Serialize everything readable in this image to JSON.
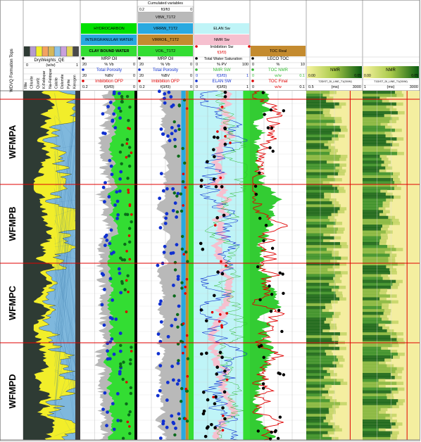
{
  "chart_data": {
    "type": "well-log-panel",
    "depth_zones": [
      "WFMPA",
      "WFMPB",
      "WFMPC",
      "WFMPD"
    ],
    "formation_tops_label": "WDVQ Formation Tops",
    "tracks": [
      {
        "id": "lithology",
        "header_title": "DryWeights_QE",
        "units": "(w/w)",
        "scale": [
          0,
          1
        ],
        "rotated_labels": [
          "Illite",
          "Chlorite",
          "Quartz",
          "K-Feldspar",
          "Na-Feldspar",
          "Calcite",
          "Dolomite",
          "Pyrite",
          "Kerogen"
        ],
        "swatch_colors": [
          "#2e3b34",
          "#b59bd0",
          "#f2ee2a",
          "#f4a261",
          "#d6b85a",
          "#8ec3e6",
          "#c9a0dc",
          "#e4d65a",
          "#4a4a4a"
        ]
      },
      {
        "id": "mrp",
        "header_bars": [
          {
            "label": "HYDROCARBON",
            "color": "#00e000"
          },
          {
            "label": "INTERGRANULAR WATER",
            "color": "#29a9e0"
          },
          {
            "label": "CLAY BOUND WATER",
            "color": "#33dd33"
          }
        ],
        "curves": [
          {
            "label": "MRP Oil",
            "left": "20",
            "unit": "% Vb",
            "right": "0",
            "color": "#000000"
          },
          {
            "label": "Total Porosity",
            "left": "20",
            "unit": "",
            "right": "0",
            "color": "#1030d0"
          },
          {
            "label": "Imbibition OFP",
            "left": "20",
            "unit": "%BV",
            "right": "0",
            "color": "#e00000"
          }
        ],
        "bottom_scale": {
          "left": "0.2",
          "unit": "f(3/f3)",
          "right": "0"
        }
      },
      {
        "id": "cumulated",
        "top_label": "Cumulated variables",
        "top_scale": {
          "left": "0.2",
          "unit": "ft3/ft3",
          "right": "0"
        },
        "header_bars": [
          {
            "label": "VBW_T1T2",
            "color": "#b9b9b9"
          },
          {
            "label": "VIRRW_T1T2",
            "color": "#29a9e0"
          },
          {
            "label": "VIRROIL_T1T2",
            "color": "#c48b2f"
          },
          {
            "label": "VOIL_T1T2",
            "color": "#33dd33"
          }
        ],
        "curves": [
          {
            "label": "MRP Oil",
            "left": "20",
            "unit": "% Vb",
            "right": "0",
            "color": "#000000"
          },
          {
            "label": "Total Porosity",
            "left": "20",
            "unit": "",
            "right": "0",
            "color": "#1030d0"
          },
          {
            "label": "Imbibition OFP",
            "left": "20",
            "unit": "%BV",
            "right": "0",
            "color": "#e00000"
          }
        ],
        "bottom_scale": {
          "left": "0.2",
          "unit": "f(3/f3)",
          "right": "0"
        }
      },
      {
        "id": "saturation",
        "header_bars": [
          {
            "label": "ELAN Sw",
            "color": "#bff4f7"
          },
          {
            "label": "NMR Sw",
            "color": "#f6c0cf"
          },
          {
            "label": "Imbibition Sw",
            "color": "#ffffff"
          }
        ],
        "imbibition_scale": "f(3/f3)",
        "curves": [
          {
            "label": "Total Water Saturation",
            "left": "0",
            "unit": "% PV",
            "right": "100",
            "color": "#000000"
          },
          {
            "label": "NMR SW",
            "left": "",
            "unit": "",
            "right": "",
            "color": "#33bb33"
          },
          {
            "label": "ELAN SW",
            "left": "0",
            "unit": "f(3/f3)",
            "right": "1",
            "color": "#1030d0"
          }
        ],
        "bottom_scale": {
          "left": "0",
          "unit": "f(3/f3)",
          "right": "1"
        }
      },
      {
        "id": "toc",
        "header_bars": [
          {
            "label": "TOC Real",
            "color": "#c48b2f"
          }
        ],
        "curves": [
          {
            "label": "LECO TOC",
            "left": "0",
            "unit": "%",
            "right": "10",
            "color": "#000000"
          },
          {
            "label": "TOC NMR",
            "left": "0",
            "unit": "w/w",
            "right": "0.1",
            "color": "#33bb33"
          },
          {
            "label": "TOC Final",
            "left": "0",
            "unit": "w/w",
            "right": "0.1",
            "color": "#e00000"
          }
        ],
        "bottom_scale": {
          "left": "0",
          "unit": "w/w",
          "right": "0.1"
        }
      },
      {
        "id": "nmr_t2",
        "title": "NMR",
        "color_scale": {
          "left": "0.00",
          "right": "0.05"
        },
        "curve_name": "T2DIST_DI_LINE_T1(00/W)",
        "axis": {
          "left": "0.5",
          "unit": "(ms)",
          "right": "3000"
        }
      },
      {
        "id": "nmr_t1",
        "title": "NMR",
        "color_scale": {
          "left": "0.00",
          "right": "0.05"
        },
        "curve_name": "T1DIST_DI_LINE_T1(00/W)",
        "axis": {
          "left": "1",
          "unit": "(ms)",
          "right": "3000"
        }
      }
    ]
  }
}
